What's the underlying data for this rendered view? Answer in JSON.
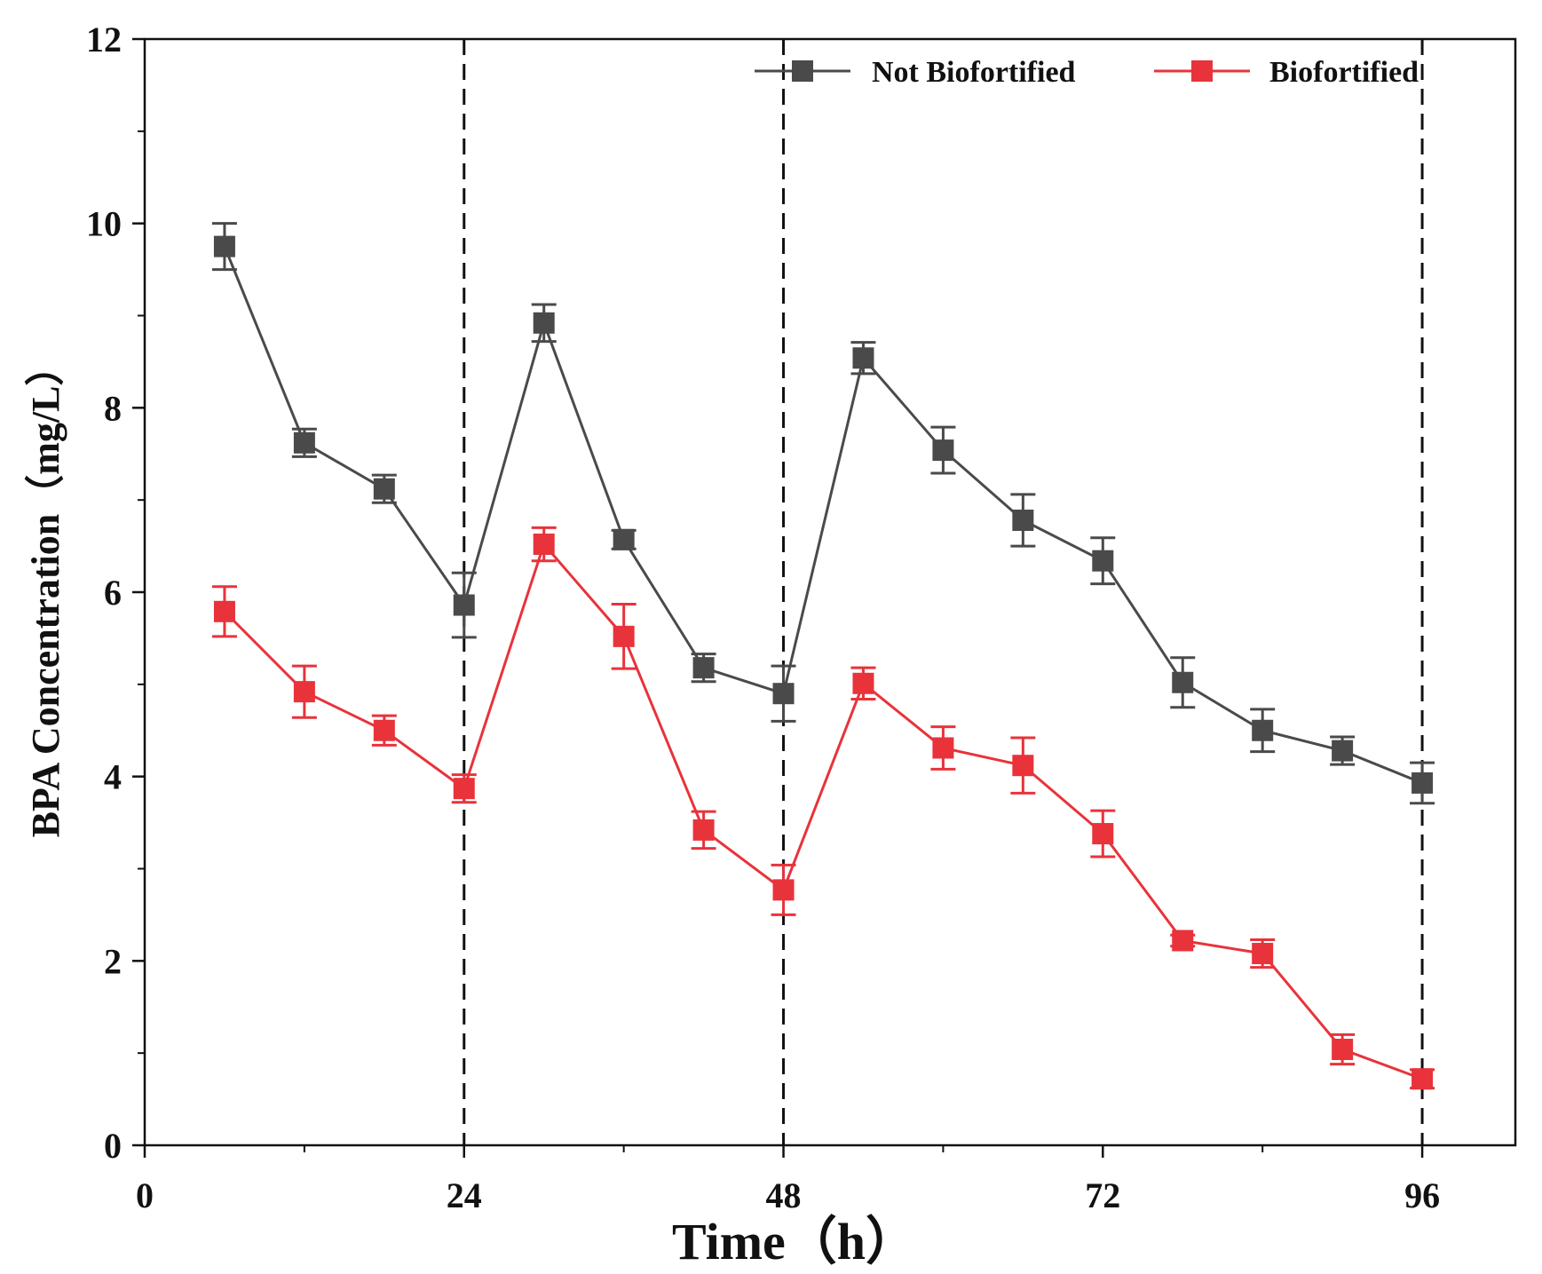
{
  "chart_data": {
    "type": "line",
    "title": "",
    "xlabel": "Time（h）",
    "ylabel": "BPA Concentration（mg/L）",
    "xlim": [
      0,
      103
    ],
    "ylim": [
      0,
      12
    ],
    "xticks": [
      0,
      24,
      48,
      72,
      96
    ],
    "xticks_minor": [
      12,
      36,
      60,
      84
    ],
    "yticks": [
      0,
      2,
      4,
      6,
      8,
      10,
      12
    ],
    "yticks_minor": [
      1,
      3,
      5,
      7,
      9,
      11
    ],
    "reference_lines_x": [
      24,
      48,
      96
    ],
    "grid": false,
    "legend_position": "top-right",
    "series": [
      {
        "name": "Not Biofortified",
        "color": "#4a4a4a",
        "marker": "square",
        "x": [
          6,
          12,
          18,
          24,
          30,
          36,
          42,
          48,
          54,
          60,
          66,
          72,
          78,
          84,
          90,
          96
        ],
        "y": [
          9.75,
          7.62,
          7.12,
          5.86,
          8.92,
          6.57,
          5.18,
          4.9,
          8.54,
          7.54,
          6.78,
          6.34,
          5.02,
          4.5,
          4.28,
          3.93
        ],
        "err": [
          0.25,
          0.15,
          0.15,
          0.35,
          0.2,
          0.1,
          0.15,
          0.3,
          0.17,
          0.25,
          0.28,
          0.25,
          0.27,
          0.23,
          0.15,
          0.22
        ]
      },
      {
        "name": "Biofortified",
        "color": "#e8333b",
        "marker": "square",
        "x": [
          6,
          12,
          18,
          24,
          30,
          36,
          42,
          48,
          54,
          60,
          66,
          72,
          78,
          84,
          90,
          96
        ],
        "y": [
          5.79,
          4.92,
          4.5,
          3.87,
          6.52,
          5.52,
          3.42,
          2.77,
          5.01,
          4.31,
          4.12,
          3.38,
          2.22,
          2.08,
          1.04,
          0.72
        ],
        "err": [
          0.27,
          0.28,
          0.16,
          0.15,
          0.18,
          0.35,
          0.2,
          0.27,
          0.17,
          0.23,
          0.3,
          0.25,
          0.06,
          0.15,
          0.16,
          0.1
        ]
      }
    ]
  }
}
